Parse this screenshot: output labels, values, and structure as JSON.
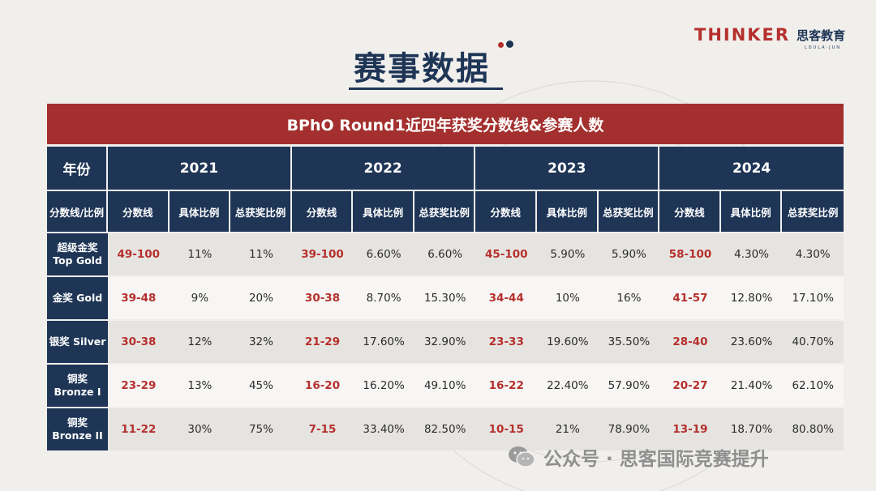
{
  "brand": {
    "logo_text": "THINKER",
    "logo_cn": "思客教育",
    "logo_sub": "LOULA·JUN"
  },
  "page": {
    "title": "赛事数据"
  },
  "table": {
    "banner": "BPhO Round1近四年获奖分数线&参赛人数",
    "year_label": "年份",
    "years": [
      "2021",
      "2022",
      "2023",
      "2024"
    ],
    "sub_label": "分数线/比例",
    "sub_headers": [
      "分数线",
      "具体比例",
      "总获奖比例"
    ],
    "rows": [
      {
        "label1": "超级金奖",
        "label2": "Top Gold",
        "cells": [
          "49-100",
          "11%",
          "11%",
          "39-100",
          "6.60%",
          "6.60%",
          "45-100",
          "5.90%",
          "5.90%",
          "58-100",
          "4.30%",
          "4.30%"
        ]
      },
      {
        "label1": "金奖 Gold",
        "label2": "",
        "cells": [
          "39-48",
          "9%",
          "20%",
          "30-38",
          "8.70%",
          "15.30%",
          "34-44",
          "10%",
          "16%",
          "41-57",
          "12.80%",
          "17.10%"
        ]
      },
      {
        "label1": "银奖 Silver",
        "label2": "",
        "cells": [
          "30-38",
          "12%",
          "32%",
          "21-29",
          "17.60%",
          "32.90%",
          "23-33",
          "19.60%",
          "35.50%",
          "28-40",
          "23.60%",
          "40.70%"
        ]
      },
      {
        "label1": "铜奖",
        "label2": "Bronze I",
        "cells": [
          "23-29",
          "13%",
          "45%",
          "16-20",
          "16.20%",
          "49.10%",
          "16-22",
          "22.40%",
          "57.90%",
          "20-27",
          "21.40%",
          "62.10%"
        ]
      },
      {
        "label1": "铜奖",
        "label2": "Bronze II",
        "cells": [
          "11-22",
          "30%",
          "75%",
          "7-15",
          "33.40%",
          "82.50%",
          "10-15",
          "21%",
          "78.90%",
          "13-19",
          "18.70%",
          "80.80%"
        ]
      }
    ]
  },
  "watermark": {
    "text": "公众号 · 思客国际竞赛提升",
    "icon": "wechat-icon"
  },
  "colors": {
    "navy": "#1e3556",
    "red": "#a3302e",
    "score_red": "#b5302d"
  }
}
